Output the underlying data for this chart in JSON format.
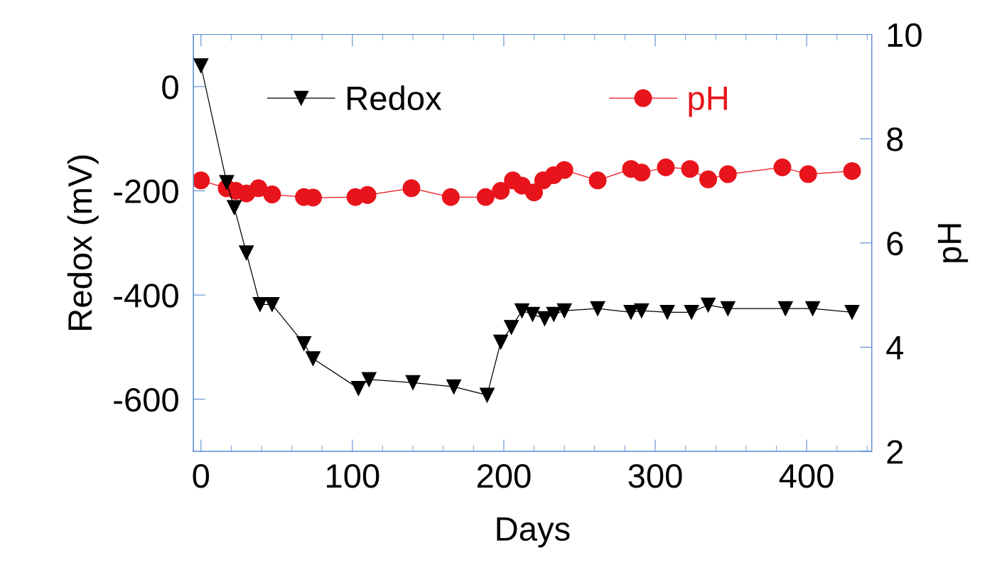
{
  "chart_data": {
    "type": "line",
    "xlabel": "Days",
    "ylabel": "Redox (mV)",
    "y2label": "pH",
    "xlim": [
      -5,
      443
    ],
    "xticks": [
      0,
      100,
      200,
      300,
      400
    ],
    "ylim": [
      -700,
      100
    ],
    "yticks": [
      -600,
      -400,
      -200,
      0
    ],
    "y2lim": [
      2,
      10
    ],
    "y2ticks": [
      2,
      4,
      6,
      8,
      10
    ],
    "grid": false,
    "legend": "top",
    "line_style": "solid",
    "series": [
      {
        "name": "Redox",
        "color": "#000000",
        "marker": "triangle",
        "x": [
          0,
          17,
          22,
          30,
          39,
          47,
          68,
          74,
          104,
          111,
          140,
          167,
          189,
          198,
          205,
          212,
          219,
          227,
          233,
          240,
          262,
          284,
          291,
          308,
          324,
          335,
          348,
          386,
          404,
          430
        ],
        "values": [
          40,
          -184,
          -232,
          -319,
          -418,
          -418,
          -493,
          -522,
          -579,
          -562,
          -568,
          -576,
          -592,
          -490,
          -462,
          -430,
          -437,
          -445,
          -437,
          -430,
          -426,
          -433,
          -430,
          -433,
          -433,
          -419,
          -426,
          -426,
          -426,
          -433
        ]
      },
      {
        "name": "pH",
        "color": "#e8141b",
        "marker": "circle",
        "axis": "y2",
        "x": [
          0,
          17,
          23,
          30,
          38,
          47,
          68,
          74,
          102,
          110,
          139,
          165,
          188,
          198,
          206,
          212,
          220,
          226,
          233,
          240,
          262,
          284,
          291,
          307,
          323,
          335,
          348,
          384,
          401,
          430
        ],
        "values": [
          7.2,
          7.05,
          7.0,
          6.95,
          7.05,
          6.93,
          6.88,
          6.87,
          6.88,
          6.92,
          7.05,
          6.88,
          6.88,
          7.0,
          7.2,
          7.1,
          6.97,
          7.2,
          7.3,
          7.4,
          7.2,
          7.42,
          7.35,
          7.45,
          7.42,
          7.22,
          7.32,
          7.45,
          7.32,
          7.38
        ]
      }
    ]
  }
}
